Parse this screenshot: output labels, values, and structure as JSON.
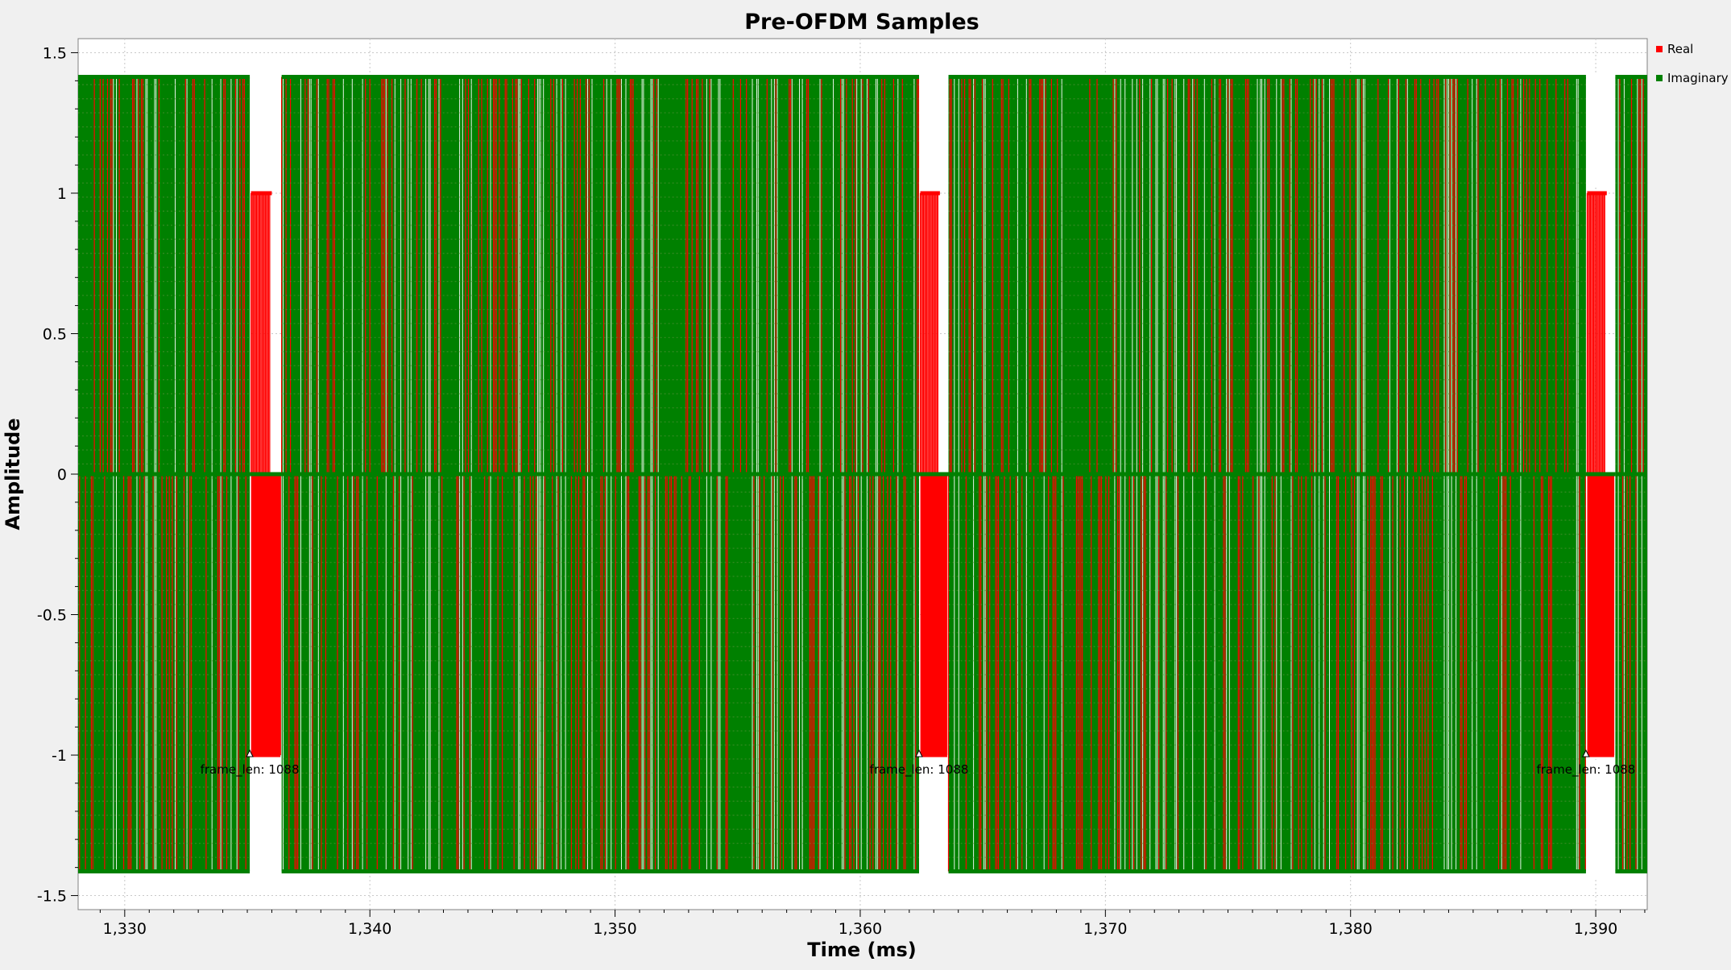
{
  "chart_data": {
    "type": "line",
    "title": "Pre-OFDM Samples",
    "xlabel": "Time (ms)",
    "ylabel": "Amplitude",
    "xlim": [
      1328.1,
      1392.1
    ],
    "ylim": [
      -1.55,
      1.55
    ],
    "x_ticks": [
      1330,
      1340,
      1350,
      1360,
      1370,
      1380,
      1390
    ],
    "x_tick_labels": [
      "1,330",
      "1,340",
      "1,350",
      "1,360",
      "1,370",
      "1,380",
      "1,390"
    ],
    "y_ticks": [
      1.5,
      1,
      0.5,
      0,
      -0.5,
      -1,
      -1.5
    ],
    "y_tick_labels": [
      "1.5",
      "1",
      "0.5",
      "0",
      "-0.5",
      "-1",
      "-1.5"
    ],
    "grid": true,
    "legend_position": "top-right",
    "series": [
      {
        "name": "Real",
        "color": "#ff0000",
        "levels": [
          -1.414,
          0,
          1.414
        ],
        "preamble_levels": [
          -1,
          0,
          1
        ]
      },
      {
        "name": "Imaginary",
        "color": "#008000",
        "levels": [
          -1.414,
          0,
          1.414
        ],
        "preamble_levels": [
          0
        ]
      }
    ],
    "frames": [
      {
        "preamble": [
          1335.1,
          1336.4
        ],
        "payload": [
          1336.4,
          1362.4
        ],
        "tag_label": "frame_len: 1088"
      },
      {
        "preamble": [
          1362.4,
          1363.6
        ],
        "payload": [
          1363.6,
          1389.6
        ],
        "tag_label": "frame_len: 1088"
      },
      {
        "preamble": [
          1389.6,
          1390.8
        ],
        "payload": [
          1390.8,
          1392.1
        ],
        "tag_label": "frame_len: 1088"
      }
    ],
    "leading_payload": [
      1328.1,
      1335.1
    ],
    "gaps": [
      [
        1335.2,
        1336.3
      ],
      [
        1362.5,
        1363.5
      ],
      [
        1389.7,
        1390.7
      ]
    ]
  }
}
